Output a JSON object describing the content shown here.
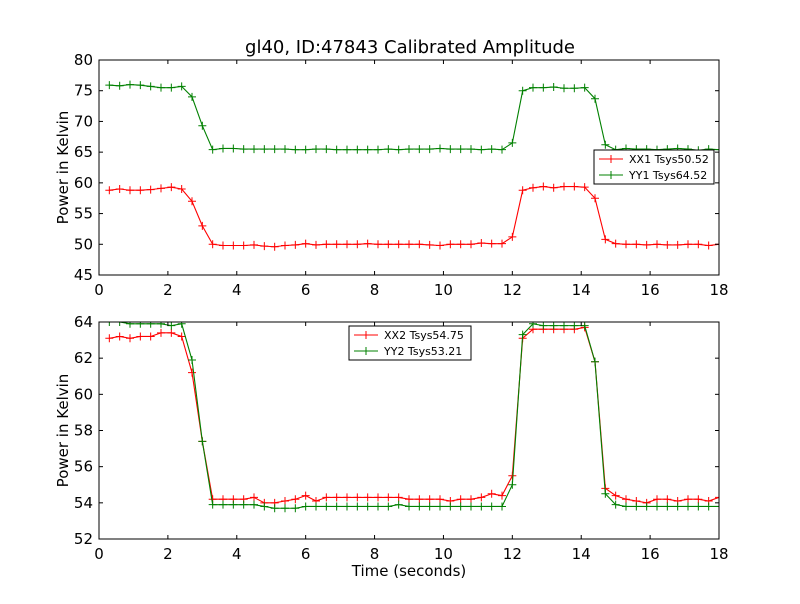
{
  "figure": {
    "title": "gl40, ID:47843 Calibrated Amplitude"
  },
  "chart_data": [
    {
      "type": "line",
      "ylabel": "Power in Kelvin",
      "xlabel": "",
      "xlim": [
        0,
        18
      ],
      "ylim": [
        45,
        80
      ],
      "xticks": [
        0,
        2,
        4,
        6,
        8,
        10,
        12,
        14,
        16,
        18
      ],
      "yticks": [
        45,
        50,
        55,
        60,
        65,
        70,
        75,
        80
      ],
      "legend_position": "right",
      "x": [
        0.3,
        0.6,
        0.9,
        1.2,
        1.5,
        1.8,
        2.1,
        2.4,
        2.7,
        3.0,
        3.3,
        3.6,
        3.9,
        4.2,
        4.5,
        4.8,
        5.1,
        5.4,
        5.7,
        6.0,
        6.3,
        6.6,
        6.9,
        7.2,
        7.5,
        7.8,
        8.1,
        8.4,
        8.7,
        9.0,
        9.3,
        9.6,
        9.9,
        10.2,
        10.5,
        10.8,
        11.1,
        11.4,
        11.7,
        12.0,
        12.3,
        12.6,
        12.9,
        13.2,
        13.5,
        13.8,
        14.1,
        14.4,
        14.7,
        15.0,
        15.3,
        15.6,
        15.9,
        16.2,
        16.5,
        16.8,
        17.1,
        17.4,
        17.7,
        18.0
      ],
      "series": [
        {
          "name": "XX1 Tsys50.52",
          "color": "#ff0000",
          "values": [
            58.8,
            59.0,
            58.8,
            58.8,
            58.9,
            59.1,
            59.3,
            59.0,
            57.0,
            53.0,
            50.0,
            49.8,
            49.8,
            49.8,
            49.9,
            49.7,
            49.6,
            49.8,
            49.9,
            50.1,
            49.9,
            50.0,
            50.0,
            50.0,
            50.0,
            50.1,
            50.0,
            50.0,
            50.0,
            50.0,
            50.0,
            49.9,
            49.8,
            50.0,
            50.0,
            50.0,
            50.2,
            50.1,
            50.1,
            51.2,
            58.8,
            59.2,
            59.4,
            59.2,
            59.4,
            59.4,
            59.3,
            57.5,
            50.8,
            50.1,
            50.0,
            50.0,
            49.9,
            50.0,
            49.9,
            49.9,
            50.0,
            50.0,
            49.8,
            50.0
          ]
        },
        {
          "name": "YY1 Tsys64.52",
          "color": "#008000",
          "values": [
            75.9,
            75.8,
            76.0,
            75.9,
            75.7,
            75.5,
            75.5,
            75.7,
            74.0,
            69.3,
            65.4,
            65.6,
            65.6,
            65.5,
            65.5,
            65.5,
            65.5,
            65.5,
            65.4,
            65.4,
            65.5,
            65.5,
            65.4,
            65.4,
            65.4,
            65.4,
            65.4,
            65.5,
            65.4,
            65.5,
            65.5,
            65.5,
            65.6,
            65.5,
            65.5,
            65.5,
            65.4,
            65.5,
            65.4,
            66.5,
            75.0,
            75.5,
            75.5,
            75.6,
            75.4,
            75.4,
            75.5,
            73.7,
            66.2,
            65.4,
            65.6,
            65.5,
            65.5,
            65.4,
            65.5,
            65.6,
            65.5,
            65.3,
            65.5,
            65.4
          ]
        }
      ]
    },
    {
      "type": "line",
      "ylabel": "Power in Kelvin",
      "xlabel": "Time (seconds)",
      "xlim": [
        0,
        18
      ],
      "ylim": [
        52,
        64
      ],
      "xticks": [
        0,
        2,
        4,
        6,
        8,
        10,
        12,
        14,
        16,
        18
      ],
      "yticks": [
        52,
        54,
        56,
        58,
        60,
        62,
        64
      ],
      "legend_position": "top-center",
      "x": [
        0.3,
        0.6,
        0.9,
        1.2,
        1.5,
        1.8,
        2.1,
        2.4,
        2.7,
        3.0,
        3.3,
        3.6,
        3.9,
        4.2,
        4.5,
        4.8,
        5.1,
        5.4,
        5.7,
        6.0,
        6.3,
        6.6,
        6.9,
        7.2,
        7.5,
        7.8,
        8.1,
        8.4,
        8.7,
        9.0,
        9.3,
        9.6,
        9.9,
        10.2,
        10.5,
        10.8,
        11.1,
        11.4,
        11.7,
        12.0,
        12.3,
        12.6,
        12.9,
        13.2,
        13.5,
        13.8,
        14.1,
        14.4,
        14.7,
        15.0,
        15.3,
        15.6,
        15.9,
        16.2,
        16.5,
        16.8,
        17.1,
        17.4,
        17.7,
        18.0
      ],
      "series": [
        {
          "name": "XX2 Tsys54.75",
          "color": "#ff0000",
          "values": [
            63.1,
            63.2,
            63.1,
            63.2,
            63.2,
            63.4,
            63.4,
            63.2,
            61.2,
            57.4,
            54.2,
            54.2,
            54.2,
            54.2,
            54.3,
            54.0,
            54.0,
            54.1,
            54.2,
            54.4,
            54.1,
            54.3,
            54.3,
            54.3,
            54.3,
            54.3,
            54.3,
            54.3,
            54.3,
            54.2,
            54.2,
            54.2,
            54.2,
            54.1,
            54.2,
            54.2,
            54.3,
            54.5,
            54.4,
            55.5,
            63.1,
            63.6,
            63.6,
            63.6,
            63.6,
            63.6,
            63.7,
            61.8,
            54.8,
            54.4,
            54.2,
            54.1,
            54.0,
            54.2,
            54.2,
            54.1,
            54.2,
            54.2,
            54.1,
            54.3
          ]
        },
        {
          "name": "YY2 Tsys53.21",
          "color": "#008000",
          "values": [
            64.0,
            64.0,
            63.9,
            63.9,
            63.9,
            63.9,
            63.8,
            63.9,
            61.9,
            57.4,
            53.9,
            53.9,
            53.9,
            53.9,
            53.9,
            53.8,
            53.7,
            53.7,
            53.7,
            53.8,
            53.8,
            53.8,
            53.8,
            53.8,
            53.8,
            53.8,
            53.8,
            53.8,
            53.9,
            53.8,
            53.8,
            53.8,
            53.8,
            53.8,
            53.8,
            53.8,
            53.8,
            53.8,
            53.8,
            55.0,
            63.3,
            63.9,
            63.8,
            63.8,
            63.8,
            63.8,
            63.8,
            61.8,
            54.5,
            53.9,
            53.8,
            53.8,
            53.8,
            53.8,
            53.8,
            53.8,
            53.8,
            53.8,
            53.8,
            53.8
          ]
        }
      ]
    }
  ]
}
